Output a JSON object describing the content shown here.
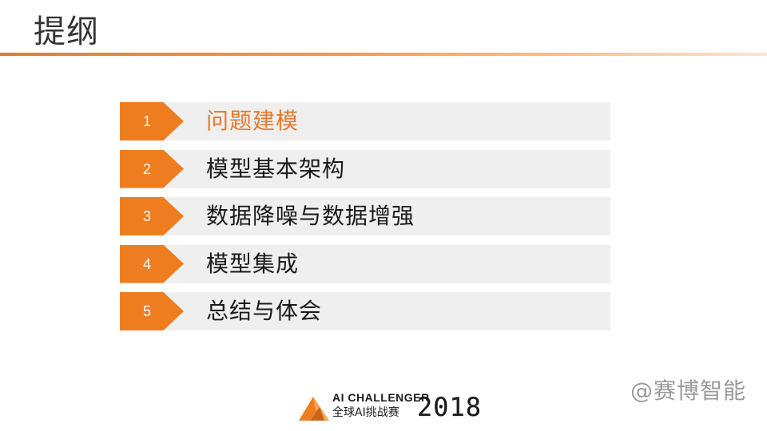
{
  "slide": {
    "title": "提纲",
    "accent_color": "#ee7d1f",
    "active_text_color": "#e8792a"
  },
  "agenda": {
    "items": [
      {
        "number": "1",
        "label": "问题建模",
        "active": true
      },
      {
        "number": "2",
        "label": "模型基本架构",
        "active": false
      },
      {
        "number": "3",
        "label": "数据降噪与数据增强",
        "active": false
      },
      {
        "number": "4",
        "label": "模型集成",
        "active": false
      },
      {
        "number": "5",
        "label": "总结与体会",
        "active": false
      }
    ]
  },
  "logo": {
    "line1": "AI CHALLENGER",
    "line2": "全球AI挑战赛",
    "year": "2018",
    "icon": "orange-triangle-logo-icon"
  },
  "watermark": {
    "text": "@赛博智能"
  }
}
